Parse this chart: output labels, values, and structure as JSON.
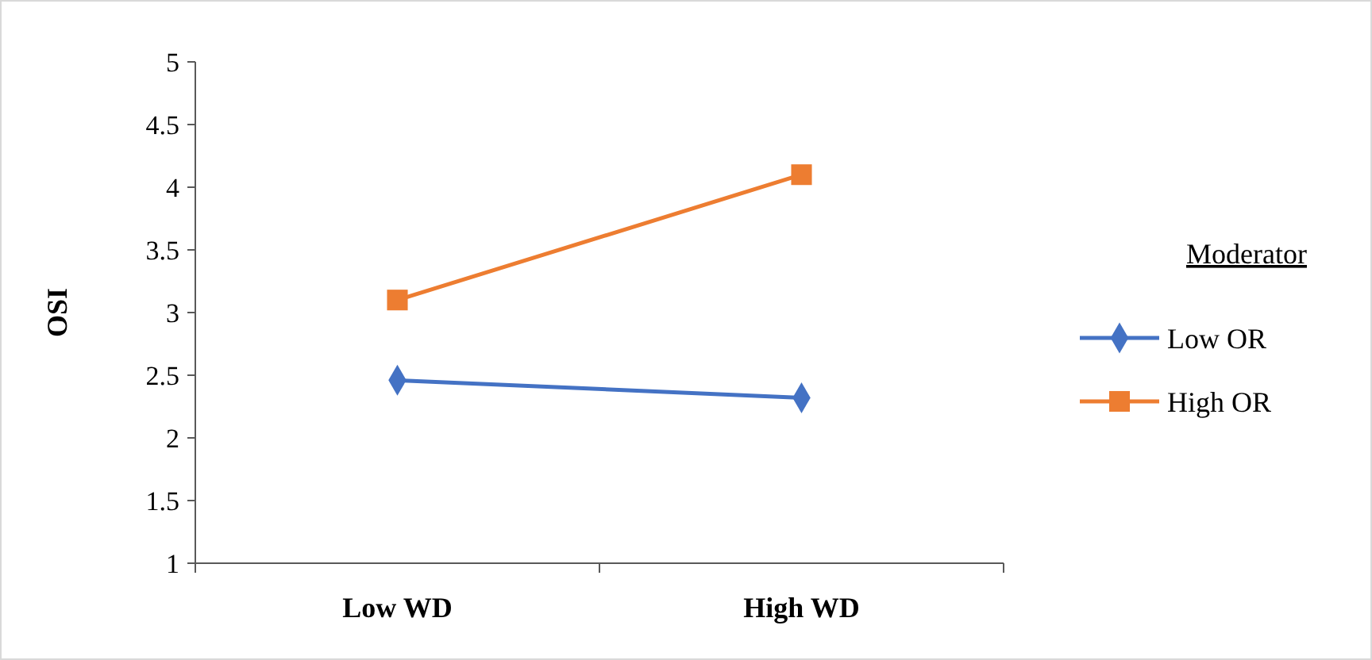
{
  "chart_data": {
    "type": "line",
    "ylabel": "OSI",
    "categories": [
      "Low WD",
      "High WD"
    ],
    "series": [
      {
        "name": "Low OR",
        "color": "#4472c4",
        "values": [
          2.46,
          2.32
        ],
        "marker": "diamond"
      },
      {
        "name": "High OR",
        "color": "#ed7d31",
        "values": [
          3.1,
          4.1
        ],
        "marker": "square"
      }
    ],
    "ylim": [
      1,
      5
    ],
    "yticks": [
      1,
      1.5,
      2,
      2.5,
      3,
      3.5,
      4,
      4.5,
      5
    ],
    "legend": "right",
    "legend_title": "Moderator",
    "grid": false,
    "line_style": "solid"
  }
}
